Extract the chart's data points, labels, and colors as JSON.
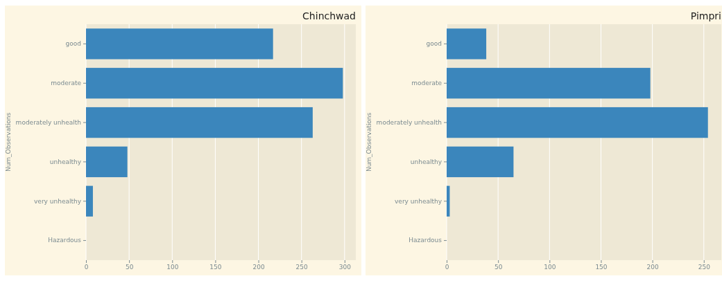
{
  "chart_data": [
    {
      "type": "bar",
      "orientation": "horizontal",
      "title": "Chinchwad",
      "ylabel": "Num_Observations",
      "categories": [
        "good",
        "moderate",
        "moderately unhealth",
        "unhealthy",
        "very unhealthy",
        "Hazardous"
      ],
      "values": [
        217,
        298,
        263,
        48,
        8,
        0
      ],
      "color": "#3b86bc",
      "xlim": [
        0,
        313
      ],
      "xticks": [
        0,
        50,
        100,
        150,
        200,
        250,
        300
      ],
      "grid": "x"
    },
    {
      "type": "bar",
      "orientation": "horizontal",
      "title": "Pimpri",
      "ylabel": "Num_Observations",
      "categories": [
        "good",
        "moderate",
        "moderately unhealth",
        "unhealthy",
        "very unhealthy",
        "Hazardous"
      ],
      "values": [
        38.5,
        198,
        254,
        65,
        3,
        0
      ],
      "color": "#3b86bc",
      "xlim": [
        0,
        267
      ],
      "xticks": [
        0,
        50,
        100,
        150,
        200,
        250
      ],
      "grid": "x"
    }
  ]
}
